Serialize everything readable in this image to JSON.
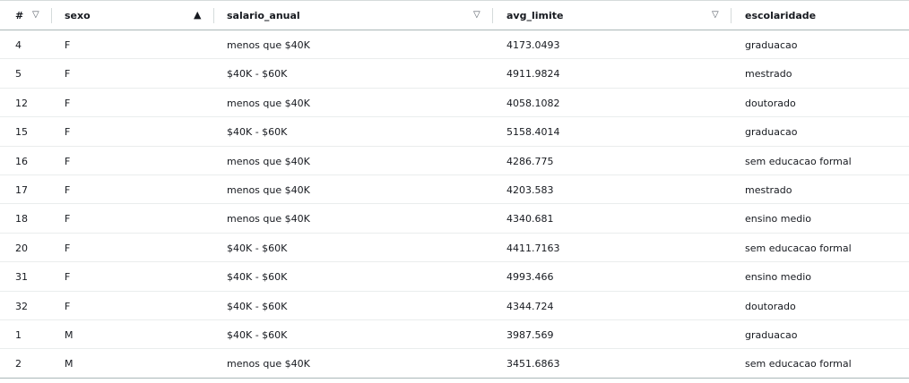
{
  "columns": {
    "index": {
      "label": "#",
      "sort_icon": "sort-down-outline-icon"
    },
    "sexo": {
      "label": "sexo",
      "sort_icon": "sort-up-filled-icon"
    },
    "salario_anual": {
      "label": "salario_anual",
      "sort_icon": "sort-down-outline-icon"
    },
    "avg_limite": {
      "label": "avg_limite",
      "sort_icon": "sort-down-outline-icon"
    },
    "escolaridade": {
      "label": "escolaridade"
    }
  },
  "rows": [
    {
      "index": "4",
      "sexo": "F",
      "salario_anual": "menos que $40K",
      "avg_limite": "4173.0493",
      "escolaridade": "graduacao"
    },
    {
      "index": "5",
      "sexo": "F",
      "salario_anual": "$40K - $60K",
      "avg_limite": "4911.9824",
      "escolaridade": "mestrado"
    },
    {
      "index": "12",
      "sexo": "F",
      "salario_anual": "menos que $40K",
      "avg_limite": "4058.1082",
      "escolaridade": "doutorado"
    },
    {
      "index": "15",
      "sexo": "F",
      "salario_anual": "$40K - $60K",
      "avg_limite": "5158.4014",
      "escolaridade": "graduacao"
    },
    {
      "index": "16",
      "sexo": "F",
      "salario_anual": "menos que $40K",
      "avg_limite": "4286.775",
      "escolaridade": "sem educacao formal"
    },
    {
      "index": "17",
      "sexo": "F",
      "salario_anual": "menos que $40K",
      "avg_limite": "4203.583",
      "escolaridade": "mestrado"
    },
    {
      "index": "18",
      "sexo": "F",
      "salario_anual": "menos que $40K",
      "avg_limite": "4340.681",
      "escolaridade": "ensino medio"
    },
    {
      "index": "20",
      "sexo": "F",
      "salario_anual": "$40K - $60K",
      "avg_limite": "4411.7163",
      "escolaridade": "sem educacao formal"
    },
    {
      "index": "31",
      "sexo": "F",
      "salario_anual": "$40K - $60K",
      "avg_limite": "4993.466",
      "escolaridade": "ensino medio"
    },
    {
      "index": "32",
      "sexo": "F",
      "salario_anual": "$40K - $60K",
      "avg_limite": "4344.724",
      "escolaridade": "doutorado"
    },
    {
      "index": "1",
      "sexo": "M",
      "salario_anual": "$40K - $60K",
      "avg_limite": "3987.569",
      "escolaridade": "graduacao"
    },
    {
      "index": "2",
      "sexo": "M",
      "salario_anual": "menos que $40K",
      "avg_limite": "3451.6863",
      "escolaridade": "sem educacao formal"
    }
  ]
}
